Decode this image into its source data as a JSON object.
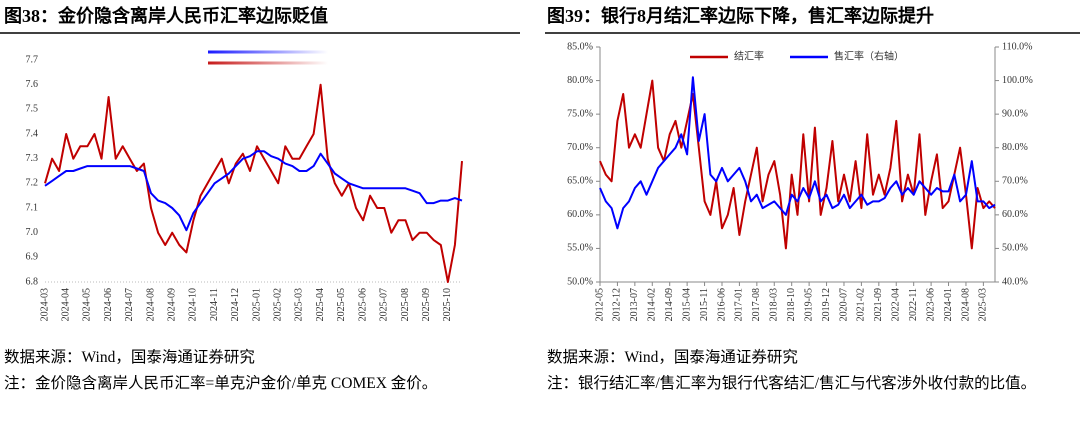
{
  "chart_data": [
    {
      "type": "line",
      "title": "图38：金价隐含离岸人民币汇率边际贬值",
      "source": "数据来源：Wind，国泰海通证券研究",
      "note": "注：金价隐含离岸人民币汇率=单克沪金价/单克 COMEX 金价。",
      "categories": [
        "2024-03",
        null,
        null,
        "2024-04",
        null,
        null,
        "2024-05",
        null,
        null,
        "2024-06",
        null,
        null,
        "2024-07",
        null,
        null,
        "2024-08",
        null,
        null,
        "2024-09",
        null,
        null,
        "2024-10",
        null,
        null,
        "2024-11",
        null,
        null,
        "2024-12",
        null,
        null,
        "2025-01",
        null,
        null,
        "2025-02",
        null,
        null,
        "2025-03",
        null,
        null,
        "2025-04",
        null,
        null,
        "2025-05",
        null,
        null,
        "2025-06",
        null,
        null,
        "2025-07",
        null,
        null,
        "2025-08",
        null,
        null,
        "2025-09",
        null,
        null,
        "2025-10",
        null,
        null
      ],
      "series": [
        {
          "color": "#c00000",
          "values": [
            7.2,
            7.3,
            7.25,
            7.4,
            7.3,
            7.35,
            7.35,
            7.4,
            7.3,
            7.55,
            7.3,
            7.35,
            7.3,
            7.25,
            7.28,
            7.1,
            7.0,
            6.95,
            7.0,
            6.95,
            6.92,
            7.05,
            7.15,
            7.2,
            7.25,
            7.3,
            7.2,
            7.28,
            7.32,
            7.25,
            7.35,
            7.3,
            7.25,
            7.2,
            7.35,
            7.3,
            7.3,
            7.35,
            7.4,
            7.6,
            7.3,
            7.2,
            7.15,
            7.2,
            7.1,
            7.05,
            7.15,
            7.1,
            7.1,
            7.0,
            7.05,
            7.05,
            6.97,
            7.0,
            7.0,
            6.97,
            6.95,
            6.8,
            6.95,
            7.29
          ]
        },
        {
          "color": "#0000ff",
          "values": [
            7.19,
            7.21,
            7.23,
            7.25,
            7.25,
            7.26,
            7.27,
            7.27,
            7.27,
            7.27,
            7.27,
            7.27,
            7.27,
            7.26,
            7.25,
            7.16,
            7.13,
            7.12,
            7.1,
            7.07,
            7.01,
            7.08,
            7.12,
            7.16,
            7.2,
            7.22,
            7.24,
            7.27,
            7.3,
            7.31,
            7.33,
            7.33,
            7.31,
            7.3,
            7.28,
            7.27,
            7.25,
            7.25,
            7.27,
            7.32,
            7.28,
            7.24,
            7.22,
            7.2,
            7.19,
            7.18,
            7.18,
            7.18,
            7.18,
            7.18,
            7.18,
            7.18,
            7.17,
            7.16,
            7.12,
            7.12,
            7.13,
            7.13,
            7.14,
            7.13
          ]
        }
      ],
      "ylim": [
        6.8,
        7.7
      ],
      "yticks": [
        6.8,
        6.9,
        {
          "value": 7,
          "label": "7.0"
        },
        7.1,
        7.2,
        7.3,
        7.4,
        7.5,
        7.6,
        7.7
      ]
    },
    {
      "type": "line",
      "title": "图39：银行8月结汇率边际下降，售汇率边际提升",
      "source": "数据来源：Wind，国泰海通证券研究",
      "note": "注：银行结汇率/售汇率为银行代客结汇/售汇与代客涉外收付款的比值。",
      "categories": [
        "2012-05",
        null,
        null,
        "2012-12",
        null,
        null,
        "2013-07",
        null,
        null,
        "2014-02",
        null,
        null,
        "2014-09",
        null,
        null,
        "2015-04",
        null,
        null,
        "2015-11",
        null,
        null,
        "2016-06",
        null,
        null,
        "2017-01",
        null,
        null,
        "2017-08",
        null,
        null,
        "2018-03",
        null,
        null,
        "2018-10",
        null,
        null,
        "2019-05",
        null,
        null,
        "2019-12",
        null,
        null,
        "2020-07",
        null,
        null,
        "2021-02",
        null,
        null,
        "2021-09",
        null,
        null,
        "2022-04",
        null,
        null,
        "2022-11",
        null,
        null,
        "2023-06",
        null,
        null,
        "2024-01",
        null,
        null,
        "2024-08",
        null,
        null,
        "2025-03",
        null,
        null
      ],
      "series": [
        {
          "name": "结汇率",
          "color": "#c00000",
          "values": [
            68,
            66,
            65,
            74,
            78,
            70,
            72,
            70,
            75,
            80,
            70,
            68,
            72,
            74,
            70,
            74,
            78,
            70,
            62,
            60,
            65,
            58,
            60,
            64,
            57,
            62,
            66,
            70,
            62,
            66,
            68,
            63,
            55,
            66,
            60,
            72,
            62,
            73,
            60,
            64,
            71,
            62,
            66,
            62,
            68,
            61,
            72,
            63,
            66,
            63,
            67,
            74,
            62,
            66,
            63,
            72,
            60,
            65,
            69,
            61,
            62,
            66,
            70,
            63,
            55,
            64,
            61,
            62,
            61
          ]
        },
        {
          "name": "售汇率（右轴）",
          "color": "#0000ff",
          "axis": "y2",
          "values": [
            68,
            64,
            62,
            56,
            62,
            64,
            68,
            70,
            66,
            70,
            74,
            76,
            78,
            80,
            84,
            78,
            101,
            82,
            90,
            72,
            70,
            74,
            70,
            72,
            74,
            70,
            64,
            66,
            62,
            63,
            64,
            62,
            60,
            66,
            64,
            68,
            65,
            70,
            64,
            66,
            62,
            63,
            66,
            62,
            64,
            66,
            63,
            64,
            64,
            65,
            68,
            70,
            66,
            68,
            66,
            70,
            68,
            66,
            68,
            67,
            67,
            72,
            64,
            66,
            76,
            64,
            64,
            62,
            63
          ]
        }
      ],
      "ylim": [
        50,
        85
      ],
      "yticks": [
        {
          "value": 50,
          "label": "50.0%"
        },
        {
          "value": 55,
          "label": "55.0%"
        },
        {
          "value": 60,
          "label": "60.0%"
        },
        {
          "value": 65,
          "label": "65.0%"
        },
        {
          "value": 70,
          "label": "70.0%"
        },
        {
          "value": 75,
          "label": "75.0%"
        },
        {
          "value": 80,
          "label": "80.0%"
        },
        {
          "value": 85,
          "label": "85.0%"
        }
      ],
      "y2lim": [
        40,
        110
      ],
      "y2ticks": [
        {
          "value": 40,
          "label": "40.0%"
        },
        {
          "value": 50,
          "label": "50.0%"
        },
        {
          "value": 60,
          "label": "60.0%"
        },
        {
          "value": 70,
          "label": "70.0%"
        },
        {
          "value": 80,
          "label": "80.0%"
        },
        {
          "value": 90,
          "label": "90.0%"
        },
        {
          "value": 100,
          "label": "100.0%"
        },
        {
          "value": 110,
          "label": "110.0%"
        }
      ]
    }
  ]
}
